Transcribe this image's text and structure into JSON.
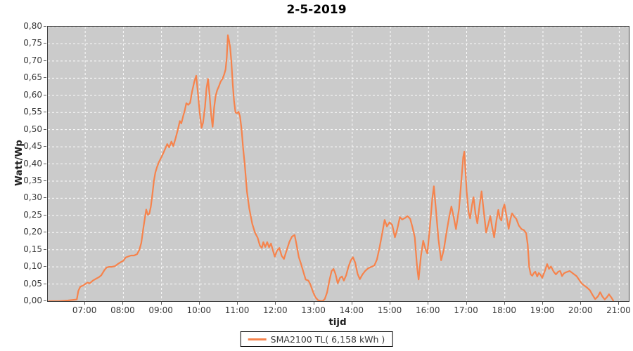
{
  "chart_data": {
    "type": "line",
    "title": "2-5-2019",
    "xlabel": "tijd",
    "ylabel": "Watt/Wp",
    "xlim": [
      6.02,
      21.25
    ],
    "ylim": [
      0,
      0.8
    ],
    "grid": true,
    "plot_bg": "#cbcbcb",
    "grid_color": "#ffffff",
    "x_ticks": [
      {
        "v": 7,
        "label": "07:00"
      },
      {
        "v": 8,
        "label": "08:00"
      },
      {
        "v": 9,
        "label": "09:00"
      },
      {
        "v": 10,
        "label": "10:00"
      },
      {
        "v": 11,
        "label": "11:00"
      },
      {
        "v": 12,
        "label": "12:00"
      },
      {
        "v": 13,
        "label": "13:00"
      },
      {
        "v": 14,
        "label": "14:00"
      },
      {
        "v": 15,
        "label": "15:00"
      },
      {
        "v": 16,
        "label": "16:00"
      },
      {
        "v": 17,
        "label": "17:00"
      },
      {
        "v": 18,
        "label": "18:00"
      },
      {
        "v": 19,
        "label": "19:00"
      },
      {
        "v": 20,
        "label": "20:00"
      },
      {
        "v": 21,
        "label": "21:00"
      }
    ],
    "y_ticks": [
      {
        "v": 0.0,
        "label": "0,00"
      },
      {
        "v": 0.05,
        "label": "0,05"
      },
      {
        "v": 0.1,
        "label": "0,10"
      },
      {
        "v": 0.15,
        "label": "0,15"
      },
      {
        "v": 0.2,
        "label": "0,20"
      },
      {
        "v": 0.25,
        "label": "0,25"
      },
      {
        "v": 0.3,
        "label": "0,30"
      },
      {
        "v": 0.35,
        "label": "0,35"
      },
      {
        "v": 0.4,
        "label": "0,40"
      },
      {
        "v": 0.45,
        "label": "0,45"
      },
      {
        "v": 0.5,
        "label": "0,50"
      },
      {
        "v": 0.55,
        "label": "0,55"
      },
      {
        "v": 0.6,
        "label": "0,60"
      },
      {
        "v": 0.65,
        "label": "0,65"
      },
      {
        "v": 0.7,
        "label": "0,70"
      },
      {
        "v": 0.75,
        "label": "0,75"
      },
      {
        "v": 0.8,
        "label": "0,80"
      }
    ],
    "legend": {
      "position": "bottom-center",
      "entries": [
        {
          "label": "SMA2100 TL( 6,158 kWh )",
          "color": "#f6834c"
        }
      ]
    },
    "series": [
      {
        "name": "SMA2100 TL( 6,158 kWh )",
        "color": "#f6834c",
        "points": [
          [
            6.05,
            0
          ],
          [
            6.3,
            0
          ],
          [
            6.55,
            0.002
          ],
          [
            6.72,
            0.004
          ],
          [
            6.78,
            0.005
          ],
          [
            6.82,
            0.03
          ],
          [
            6.87,
            0.042
          ],
          [
            6.95,
            0.046
          ],
          [
            7,
            0.05
          ],
          [
            7.06,
            0.054
          ],
          [
            7.12,
            0.052
          ],
          [
            7.2,
            0.06
          ],
          [
            7.28,
            0.065
          ],
          [
            7.36,
            0.07
          ],
          [
            7.42,
            0.075
          ],
          [
            7.5,
            0.09
          ],
          [
            7.56,
            0.098
          ],
          [
            7.63,
            0.1
          ],
          [
            7.7,
            0.1
          ],
          [
            7.78,
            0.102
          ],
          [
            7.85,
            0.108
          ],
          [
            7.92,
            0.113
          ],
          [
            8,
            0.118
          ],
          [
            8.06,
            0.127
          ],
          [
            8.12,
            0.13
          ],
          [
            8.2,
            0.133
          ],
          [
            8.28,
            0.133
          ],
          [
            8.36,
            0.137
          ],
          [
            8.42,
            0.15
          ],
          [
            8.47,
            0.17
          ],
          [
            8.52,
            0.21
          ],
          [
            8.56,
            0.24
          ],
          [
            8.6,
            0.267
          ],
          [
            8.64,
            0.252
          ],
          [
            8.68,
            0.255
          ],
          [
            8.72,
            0.275
          ],
          [
            8.76,
            0.31
          ],
          [
            8.8,
            0.35
          ],
          [
            8.84,
            0.375
          ],
          [
            8.88,
            0.39
          ],
          [
            8.93,
            0.405
          ],
          [
            9,
            0.42
          ],
          [
            9.06,
            0.435
          ],
          [
            9.12,
            0.45
          ],
          [
            9.15,
            0.458
          ],
          [
            9.2,
            0.448
          ],
          [
            9.26,
            0.465
          ],
          [
            9.31,
            0.452
          ],
          [
            9.37,
            0.475
          ],
          [
            9.43,
            0.5
          ],
          [
            9.48,
            0.525
          ],
          [
            9.52,
            0.518
          ],
          [
            9.57,
            0.54
          ],
          [
            9.61,
            0.556
          ],
          [
            9.65,
            0.577
          ],
          [
            9.7,
            0.572
          ],
          [
            9.75,
            0.578
          ],
          [
            9.8,
            0.61
          ],
          [
            9.86,
            0.64
          ],
          [
            9.91,
            0.657
          ],
          [
            9.96,
            0.6
          ],
          [
            10,
            0.55
          ],
          [
            10.05,
            0.505
          ],
          [
            10.09,
            0.52
          ],
          [
            10.14,
            0.565
          ],
          [
            10.18,
            0.62
          ],
          [
            10.22,
            0.648
          ],
          [
            10.26,
            0.6
          ],
          [
            10.3,
            0.545
          ],
          [
            10.34,
            0.508
          ],
          [
            10.38,
            0.565
          ],
          [
            10.42,
            0.598
          ],
          [
            10.46,
            0.615
          ],
          [
            10.5,
            0.625
          ],
          [
            10.55,
            0.64
          ],
          [
            10.6,
            0.648
          ],
          [
            10.64,
            0.66
          ],
          [
            10.68,
            0.675
          ],
          [
            10.71,
            0.71
          ],
          [
            10.74,
            0.775
          ],
          [
            10.77,
            0.76
          ],
          [
            10.8,
            0.74
          ],
          [
            10.83,
            0.7
          ],
          [
            10.87,
            0.63
          ],
          [
            10.9,
            0.585
          ],
          [
            10.94,
            0.55
          ],
          [
            10.98,
            0.548
          ],
          [
            11.02,
            0.552
          ],
          [
            11.06,
            0.538
          ],
          [
            11.1,
            0.5
          ],
          [
            11.14,
            0.445
          ],
          [
            11.18,
            0.4
          ],
          [
            11.24,
            0.32
          ],
          [
            11.3,
            0.27
          ],
          [
            11.38,
            0.225
          ],
          [
            11.45,
            0.2
          ],
          [
            11.52,
            0.185
          ],
          [
            11.58,
            0.162
          ],
          [
            11.63,
            0.155
          ],
          [
            11.67,
            0.172
          ],
          [
            11.72,
            0.158
          ],
          [
            11.77,
            0.172
          ],
          [
            11.82,
            0.157
          ],
          [
            11.87,
            0.168
          ],
          [
            11.92,
            0.148
          ],
          [
            11.97,
            0.13
          ],
          [
            12.03,
            0.148
          ],
          [
            12.09,
            0.155
          ],
          [
            12.15,
            0.132
          ],
          [
            12.21,
            0.123
          ],
          [
            12.28,
            0.148
          ],
          [
            12.35,
            0.172
          ],
          [
            12.42,
            0.188
          ],
          [
            12.49,
            0.193
          ],
          [
            12.54,
            0.165
          ],
          [
            12.6,
            0.128
          ],
          [
            12.66,
            0.108
          ],
          [
            12.72,
            0.085
          ],
          [
            12.78,
            0.063
          ],
          [
            12.85,
            0.06
          ],
          [
            12.9,
            0.05
          ],
          [
            12.97,
            0.028
          ],
          [
            13.03,
            0.012
          ],
          [
            13.1,
            0.003
          ],
          [
            13.16,
            0.001
          ],
          [
            13.22,
            0
          ],
          [
            13.28,
            0.006
          ],
          [
            13.34,
            0.025
          ],
          [
            13.4,
            0.06
          ],
          [
            13.46,
            0.088
          ],
          [
            13.51,
            0.094
          ],
          [
            13.56,
            0.08
          ],
          [
            13.62,
            0.052
          ],
          [
            13.68,
            0.068
          ],
          [
            13.73,
            0.072
          ],
          [
            13.78,
            0.06
          ],
          [
            13.84,
            0.075
          ],
          [
            13.9,
            0.1
          ],
          [
            13.96,
            0.118
          ],
          [
            14.02,
            0.128
          ],
          [
            14.08,
            0.112
          ],
          [
            14.14,
            0.08
          ],
          [
            14.2,
            0.064
          ],
          [
            14.27,
            0.078
          ],
          [
            14.34,
            0.088
          ],
          [
            14.42,
            0.096
          ],
          [
            14.5,
            0.1
          ],
          [
            14.58,
            0.104
          ],
          [
            14.65,
            0.122
          ],
          [
            14.72,
            0.158
          ],
          [
            14.79,
            0.2
          ],
          [
            14.85,
            0.237
          ],
          [
            14.91,
            0.218
          ],
          [
            14.98,
            0.23
          ],
          [
            15.05,
            0.222
          ],
          [
            15.12,
            0.186
          ],
          [
            15.18,
            0.21
          ],
          [
            15.25,
            0.245
          ],
          [
            15.31,
            0.238
          ],
          [
            15.38,
            0.242
          ],
          [
            15.45,
            0.248
          ],
          [
            15.52,
            0.24
          ],
          [
            15.58,
            0.215
          ],
          [
            15.64,
            0.186
          ],
          [
            15.7,
            0.1
          ],
          [
            15.74,
            0.063
          ],
          [
            15.8,
            0.13
          ],
          [
            15.86,
            0.176
          ],
          [
            15.92,
            0.152
          ],
          [
            15.97,
            0.139
          ],
          [
            16.04,
            0.22
          ],
          [
            16.1,
            0.3
          ],
          [
            16.14,
            0.335
          ],
          [
            16.2,
            0.26
          ],
          [
            16.26,
            0.18
          ],
          [
            16.33,
            0.119
          ],
          [
            16.4,
            0.15
          ],
          [
            16.47,
            0.2
          ],
          [
            16.54,
            0.245
          ],
          [
            16.6,
            0.276
          ],
          [
            16.66,
            0.245
          ],
          [
            16.72,
            0.21
          ],
          [
            16.8,
            0.27
          ],
          [
            16.86,
            0.35
          ],
          [
            16.91,
            0.42
          ],
          [
            16.94,
            0.436
          ],
          [
            17,
            0.32
          ],
          [
            17.05,
            0.26
          ],
          [
            17.09,
            0.241
          ],
          [
            17.14,
            0.28
          ],
          [
            17.18,
            0.303
          ],
          [
            17.23,
            0.255
          ],
          [
            17.28,
            0.227
          ],
          [
            17.34,
            0.28
          ],
          [
            17.39,
            0.32
          ],
          [
            17.45,
            0.26
          ],
          [
            17.51,
            0.2
          ],
          [
            17.57,
            0.225
          ],
          [
            17.62,
            0.248
          ],
          [
            17.67,
            0.215
          ],
          [
            17.72,
            0.186
          ],
          [
            17.78,
            0.235
          ],
          [
            17.83,
            0.266
          ],
          [
            17.87,
            0.242
          ],
          [
            17.91,
            0.235
          ],
          [
            17.95,
            0.268
          ],
          [
            17.99,
            0.282
          ],
          [
            18.05,
            0.245
          ],
          [
            18.1,
            0.211
          ],
          [
            18.15,
            0.24
          ],
          [
            18.19,
            0.256
          ],
          [
            18.25,
            0.246
          ],
          [
            18.3,
            0.24
          ],
          [
            18.37,
            0.22
          ],
          [
            18.44,
            0.21
          ],
          [
            18.5,
            0.207
          ],
          [
            18.56,
            0.198
          ],
          [
            18.6,
            0.165
          ],
          [
            18.64,
            0.1
          ],
          [
            18.68,
            0.078
          ],
          [
            18.72,
            0.074
          ],
          [
            18.76,
            0.082
          ],
          [
            18.8,
            0.086
          ],
          [
            18.85,
            0.072
          ],
          [
            18.89,
            0.082
          ],
          [
            18.93,
            0.078
          ],
          [
            18.98,
            0.068
          ],
          [
            19.05,
            0.088
          ],
          [
            19.11,
            0.108
          ],
          [
            19.16,
            0.094
          ],
          [
            19.21,
            0.101
          ],
          [
            19.28,
            0.086
          ],
          [
            19.34,
            0.078
          ],
          [
            19.4,
            0.086
          ],
          [
            19.45,
            0.088
          ],
          [
            19.5,
            0.073
          ],
          [
            19.55,
            0.081
          ],
          [
            19.6,
            0.084
          ],
          [
            19.65,
            0.086
          ],
          [
            19.7,
            0.088
          ],
          [
            19.76,
            0.083
          ],
          [
            19.82,
            0.078
          ],
          [
            19.88,
            0.073
          ],
          [
            19.95,
            0.062
          ],
          [
            20.02,
            0.051
          ],
          [
            20.09,
            0.045
          ],
          [
            20.16,
            0.039
          ],
          [
            20.23,
            0.032
          ],
          [
            20.3,
            0.018
          ],
          [
            20.37,
            0.006
          ],
          [
            20.44,
            0.014
          ],
          [
            20.5,
            0.026
          ],
          [
            20.56,
            0.013
          ],
          [
            20.62,
            0.005
          ],
          [
            20.68,
            0.012
          ],
          [
            20.73,
            0.02
          ],
          [
            20.79,
            0.011
          ],
          [
            20.84,
            0.002
          ]
        ]
      }
    ]
  }
}
